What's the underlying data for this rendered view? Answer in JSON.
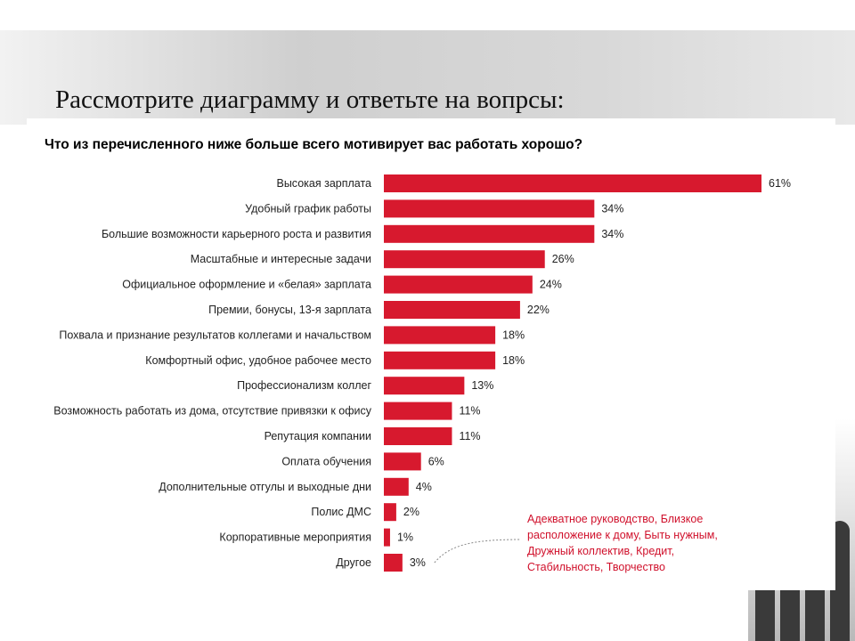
{
  "slide": {
    "title": "Рассмотрите диаграмму и ответьте на вопрсы:"
  },
  "colors": {
    "bar": "#d7192e",
    "note": "#d0102b",
    "label": "#222222"
  },
  "chart_data": {
    "type": "bar",
    "orientation": "horizontal",
    "title": "Что из перечисленного ниже больше всего мотивирует вас работать хорошо?",
    "categories": [
      "Высокая зарплата",
      "Удобный график работы",
      "Большие возможности карьерного роста и развития",
      "Масштабные и интересные задачи",
      "Официальное оформление и «белая» зарплата",
      "Премии, бонусы, 13-я зарплата",
      "Похвала и признание результатов коллегами и начальством",
      "Комфортный офис, удобное рабочее место",
      "Профессионализм коллег",
      "Возможность работать из дома, отсутствие привязки к офису",
      "Репутация компании",
      "Оплата обучения",
      "Дополнительные отгулы и выходные дни",
      "Полис ДМС",
      "Корпоративные мероприятия",
      "Другое"
    ],
    "values": [
      61,
      34,
      34,
      26,
      24,
      22,
      18,
      18,
      13,
      11,
      11,
      6,
      4,
      2,
      1,
      3
    ],
    "value_labels": [
      "61%",
      "34%",
      "34%",
      "26%",
      "24%",
      "22%",
      "18%",
      "18%",
      "13%",
      "11%",
      "11%",
      "6%",
      "4%",
      "2%",
      "1%",
      "3%"
    ],
    "xlim": [
      0,
      61
    ],
    "grid": false,
    "legend": "none",
    "annotation": "Адекватное руководство, Близкое расположение к дому, Быть нужным, Дружный коллектив, Кредит, Стабильность, Творчество"
  }
}
